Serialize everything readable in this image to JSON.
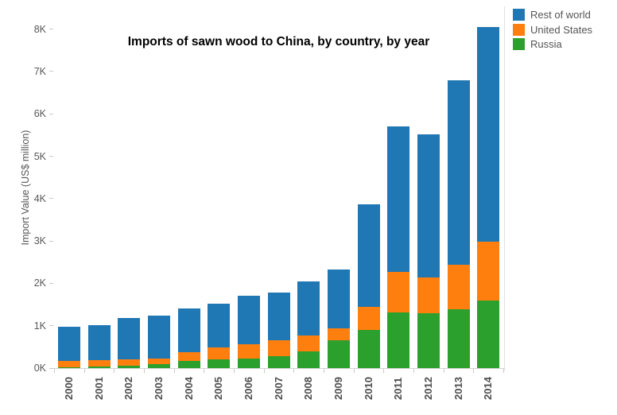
{
  "chart_data": {
    "type": "bar",
    "stacked": true,
    "title": "Imports of sawn wood to China, by country, by year",
    "ylabel": "Import Value (US$ million)",
    "xlabel": "",
    "units": "US$ million",
    "categories": [
      "2000",
      "2001",
      "2002",
      "2003",
      "2004",
      "2005",
      "2006",
      "2007",
      "2008",
      "2009",
      "2010",
      "2011",
      "2012",
      "2013",
      "2014"
    ],
    "series": [
      {
        "name": "Russia",
        "color": "#2ca02c",
        "values": [
          25,
          30,
          60,
          100,
          160,
          200,
          230,
          290,
          400,
          650,
          900,
          1320,
          1290,
          1380,
          1590
        ]
      },
      {
        "name": "United States",
        "color": "#ff7f0e",
        "values": [
          150,
          155,
          140,
          125,
          215,
          290,
          330,
          360,
          360,
          280,
          540,
          950,
          850,
          1060,
          1400
        ]
      },
      {
        "name": "Rest of world",
        "color": "#1f77b4",
        "values": [
          800,
          835,
          990,
          1005,
          1025,
          1030,
          1150,
          1130,
          1290,
          1400,
          2420,
          3430,
          3370,
          4360,
          5060
        ]
      }
    ],
    "totals": [
      975,
      1020,
      1190,
      1230,
      1400,
      1520,
      1710,
      1780,
      2050,
      2330,
      3860,
      5700,
      5510,
      6800,
      8050
    ],
    "y_ticks": [
      "0K",
      "1K",
      "2K",
      "3K",
      "4K",
      "5K",
      "6K",
      "7K",
      "8K"
    ],
    "y_tick_values": [
      0,
      1000,
      2000,
      3000,
      4000,
      5000,
      6000,
      7000,
      8000
    ],
    "ylim": [
      0,
      8500
    ],
    "grid": false,
    "legend": {
      "position": "top-right",
      "order": [
        "Rest of world",
        "United States",
        "Russia"
      ]
    },
    "colors": {
      "axis_line": "#d4d4d4",
      "tick_text": "#575757",
      "title_text": "#000000",
      "legend_text": "#555555"
    }
  }
}
